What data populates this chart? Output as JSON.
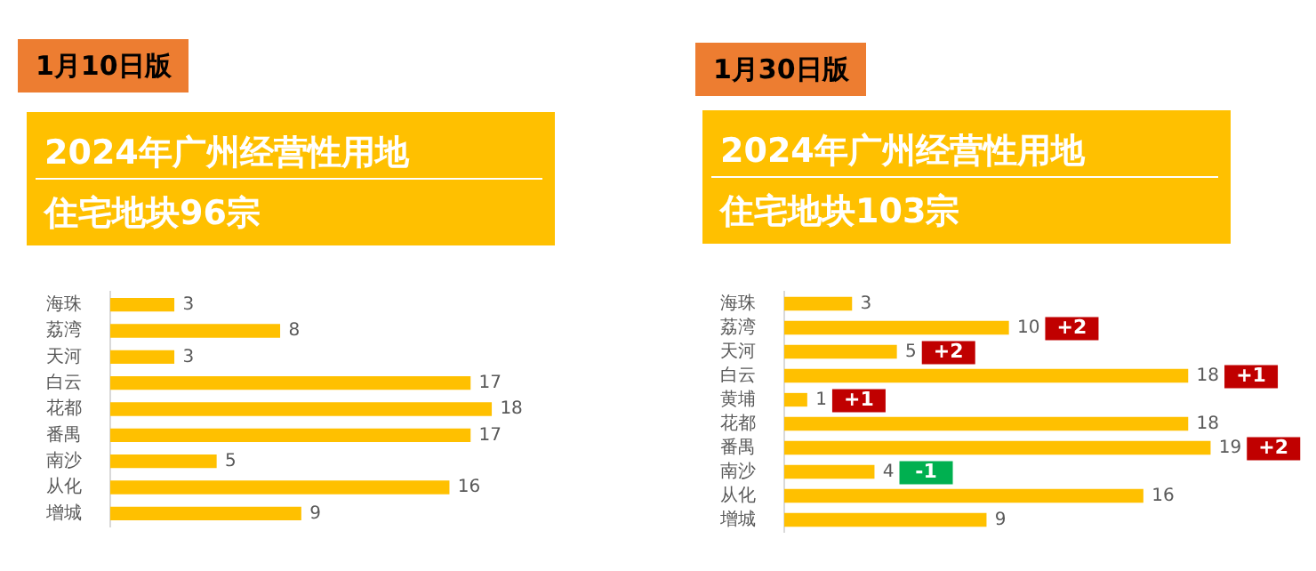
{
  "chart_data": [
    {
      "type": "bar",
      "orientation": "horizontal",
      "title": "2024年广州经营性用地",
      "subtitle": "住宅地块96宗",
      "categories": [
        "海珠",
        "荔湾",
        "天河",
        "白云",
        "花都",
        "番禺",
        "南沙",
        "从化",
        "增城"
      ],
      "values": [
        3,
        8,
        3,
        17,
        18,
        17,
        5,
        16,
        9
      ],
      "color": "#ffc000",
      "data_labels": true,
      "legend": false,
      "annotations": [
        "1月10日版"
      ]
    },
    {
      "type": "bar",
      "orientation": "horizontal",
      "title": "2024年广州经营性用地",
      "subtitle": "住宅地块103宗",
      "categories": [
        "海珠",
        "荔湾",
        "天河",
        "白云",
        "黄埔",
        "花都",
        "番禺",
        "南沙",
        "从化",
        "增城"
      ],
      "values": [
        3,
        10,
        5,
        18,
        1,
        18,
        19,
        4,
        16,
        9
      ],
      "color": "#ffc000",
      "data_labels": true,
      "legend": false,
      "annotations": [
        "1月30日版",
        {
          "text": "+2",
          "x": 5,
          "y": "天河"
        },
        {
          "text": "+2",
          "x": 10,
          "y": "荔湾"
        },
        {
          "text": "+1",
          "x": 18,
          "y": "白云"
        },
        {
          "text": "+1",
          "x": 1,
          "y": "黄埔"
        },
        {
          "text": "+2",
          "x": 19,
          "y": "番禺"
        },
        {
          "text": "-1",
          "x": 4,
          "y": "南沙"
        }
      ]
    }
  ]
}
